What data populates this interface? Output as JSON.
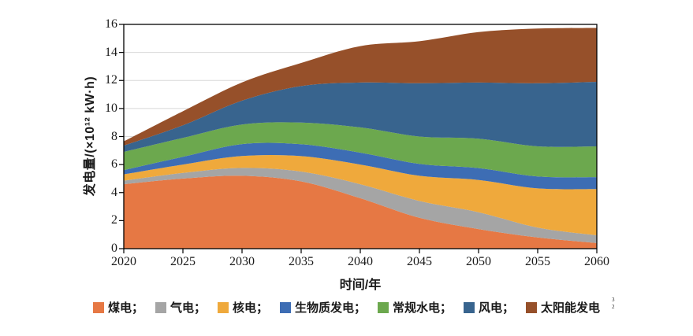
{
  "figure": {
    "background": "#ffffff",
    "artifact": "3\n2"
  },
  "chart_data": {
    "type": "area",
    "stacked": true,
    "title": "",
    "xlabel": "时间/年",
    "ylabel": "发电量/(×10¹² kW·h)",
    "xlim": [
      2020,
      2060
    ],
    "ylim": [
      0,
      16
    ],
    "xticks": [
      2020,
      2025,
      2030,
      2035,
      2040,
      2045,
      2050,
      2055,
      2060
    ],
    "yticks": [
      0,
      2,
      4,
      6,
      8,
      10,
      12,
      14,
      16
    ],
    "grid": "horizontal",
    "gridline_color": "#d8d8d8",
    "axis_color": "#000000",
    "legend_position": "bottom",
    "x": [
      2020,
      2025,
      2030,
      2035,
      2040,
      2045,
      2050,
      2055,
      2060
    ],
    "series": [
      {
        "key": "coal",
        "name": "煤电",
        "legend_label": "煤电；",
        "color": "#e67844",
        "values": [
          4.6,
          5.0,
          5.2,
          4.8,
          3.6,
          2.2,
          1.4,
          0.8,
          0.4
        ]
      },
      {
        "key": "gas",
        "name": "气电",
        "legend_label": "气电；",
        "color": "#a5a5a5",
        "values": [
          0.25,
          0.4,
          0.56,
          0.7,
          1.0,
          1.2,
          1.2,
          0.7,
          0.55
        ]
      },
      {
        "key": "nuclear",
        "name": "核电",
        "legend_label": "核电；",
        "color": "#efa93c",
        "values": [
          0.45,
          0.6,
          0.85,
          1.1,
          1.4,
          1.8,
          2.3,
          2.8,
          3.3
        ]
      },
      {
        "key": "biomass",
        "name": "生物质发电",
        "legend_label": "生物质发电；",
        "color": "#3d6db4",
        "values": [
          0.3,
          0.55,
          0.85,
          0.85,
          0.85,
          0.85,
          0.85,
          0.85,
          0.85
        ]
      },
      {
        "key": "hydro",
        "name": "常规水电",
        "legend_label": "常规水电；",
        "color": "#6ca84e",
        "values": [
          1.3,
          1.35,
          1.4,
          1.55,
          1.8,
          1.95,
          2.1,
          2.15,
          2.2
        ]
      },
      {
        "key": "wind",
        "name": "风电",
        "legend_label": "风电；",
        "color": "#38648e",
        "values": [
          0.45,
          0.9,
          1.7,
          2.6,
          3.2,
          3.8,
          4.0,
          4.5,
          4.6
        ]
      },
      {
        "key": "solar",
        "name": "太阳能发电",
        "legend_label": "太阳能发电",
        "color": "#96502a",
        "values": [
          0.3,
          1.0,
          1.3,
          1.65,
          2.6,
          3.0,
          3.6,
          3.9,
          3.85
        ]
      }
    ]
  }
}
